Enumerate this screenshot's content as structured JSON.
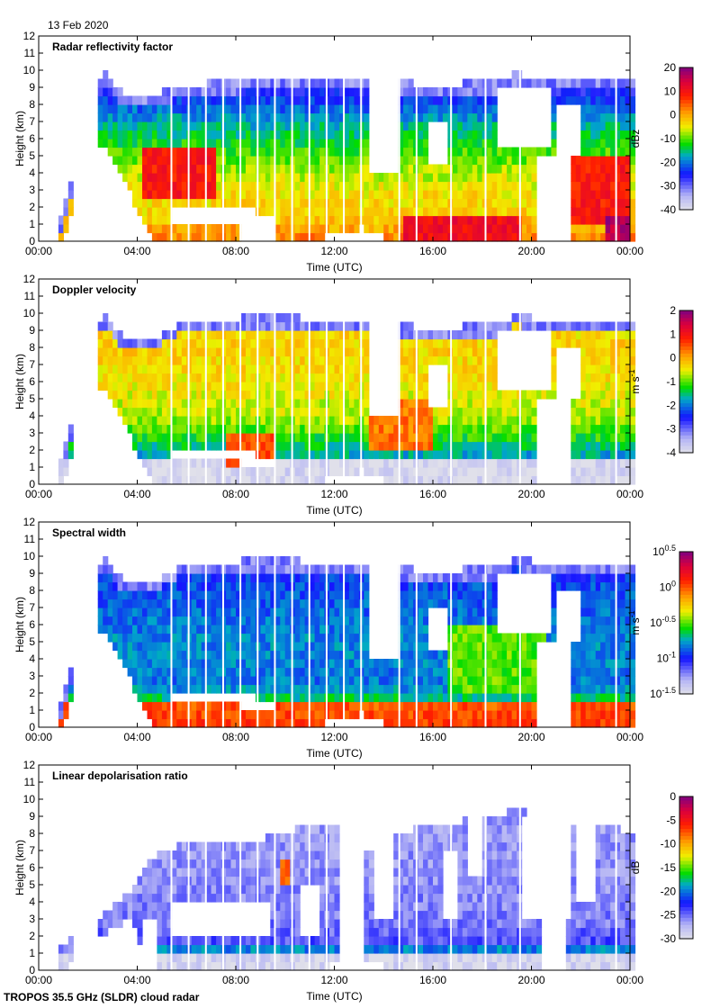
{
  "date": "13 Feb 2020",
  "footer": "TROPOS 35.5 GHz (SLDR) cloud radar",
  "chart_data": [
    {
      "type": "heatmap",
      "title": "Radar reflectivity factor",
      "xlabel": "Time (UTC)",
      "ylabel": "Height (km)",
      "xlim": [
        0,
        24
      ],
      "ylim": [
        0,
        12
      ],
      "xticks": [
        "00:00",
        "04:00",
        "08:00",
        "12:00",
        "16:00",
        "20:00",
        "00:00"
      ],
      "yticks": [
        "0",
        "1",
        "2",
        "3",
        "4",
        "5",
        "6",
        "7",
        "8",
        "9",
        "10",
        "11",
        "12"
      ],
      "colorbar": {
        "label": "dBz",
        "range": [
          -40,
          20
        ],
        "ticks": [
          {
            "b": "20"
          },
          {
            "b": "10"
          },
          {
            "b": "0"
          },
          {
            "b": "-10"
          },
          {
            "b": "-20"
          },
          {
            "b": "-30"
          },
          {
            "b": "-40"
          }
        ]
      },
      "profile": [
        [
          0,
          0.72
        ],
        [
          1.5,
          0.62
        ],
        [
          3,
          0.6
        ],
        [
          5,
          0.5
        ],
        [
          7,
          0.38
        ],
        [
          9,
          0.22
        ],
        [
          10,
          0.12
        ]
      ],
      "hotspots": [
        [
          4.3,
          7.2,
          2.5,
          5.5,
          0.82
        ],
        [
          21.6,
          24,
          1,
          5,
          0.82
        ],
        [
          14.8,
          19.5,
          0,
          1.5,
          0.85
        ],
        [
          23,
          24,
          0,
          1.5,
          0.95
        ]
      ],
      "envelope": [
        [
          0.9,
          1.3,
          0
        ],
        [
          2.6,
          10,
          6
        ],
        [
          3.5,
          8.5,
          3.5
        ],
        [
          4.6,
          8.5,
          0
        ],
        [
          6,
          9.2,
          0
        ],
        [
          9,
          9.4,
          0
        ],
        [
          12,
          9.6,
          0.3
        ],
        [
          13.2,
          9.4,
          0.8
        ],
        [
          14.5,
          9.3,
          0
        ],
        [
          16,
          9.2,
          0
        ],
        [
          18.5,
          9.3,
          0
        ],
        [
          19.3,
          9.8,
          0
        ],
        [
          21,
          9.5,
          0
        ],
        [
          23,
          9.6,
          0
        ],
        [
          24,
          9.5,
          0
        ]
      ],
      "holes": [
        [
          5.4,
          8.8,
          0.8,
          2.1
        ],
        [
          8.3,
          9.6,
          0,
          1.5
        ],
        [
          13.3,
          14.6,
          4,
          9.3
        ],
        [
          15.8,
          16.6,
          4.5,
          7
        ],
        [
          18.5,
          20.7,
          5.5,
          9
        ],
        [
          21,
          22,
          5,
          8
        ],
        [
          20.2,
          21.5,
          0,
          5
        ]
      ]
    },
    {
      "type": "heatmap",
      "title": "Doppler velocity",
      "xlabel": "Time (UTC)",
      "ylabel": "Height (km)",
      "xlim": [
        0,
        24
      ],
      "ylim": [
        0,
        12
      ],
      "xticks": [
        "00:00",
        "04:00",
        "08:00",
        "12:00",
        "16:00",
        "20:00",
        "00:00"
      ],
      "yticks": [
        "0",
        "1",
        "2",
        "3",
        "4",
        "5",
        "6",
        "7",
        "8",
        "9",
        "10",
        "11",
        "12"
      ],
      "colorbar": {
        "label": "m s",
        "label_exp": "-1",
        "range": [
          -4,
          2
        ],
        "ticks": [
          {
            "b": "2"
          },
          {
            "b": "1"
          },
          {
            "b": "0"
          },
          {
            "b": "-1"
          },
          {
            "b": "-2"
          },
          {
            "b": "-3"
          },
          {
            "b": "-4"
          }
        ]
      },
      "profile": [
        [
          0,
          0.02
        ],
        [
          1.3,
          0.02
        ],
        [
          1.4,
          0.35
        ],
        [
          2.5,
          0.45
        ],
        [
          4,
          0.55
        ],
        [
          6,
          0.6
        ],
        [
          8,
          0.62
        ],
        [
          10,
          0.6
        ]
      ],
      "hotspots": [
        [
          7.6,
          9.6,
          1,
          3,
          0.75
        ],
        [
          13.4,
          16,
          2,
          5,
          0.72
        ]
      ],
      "envelope": [
        [
          0.9,
          1.3,
          0
        ],
        [
          2.6,
          10,
          6
        ],
        [
          3.5,
          8.5,
          3.5
        ],
        [
          4.6,
          8.5,
          0
        ],
        [
          6,
          9.6,
          0
        ],
        [
          9,
          9.8,
          0
        ],
        [
          12,
          9.7,
          0.3
        ],
        [
          13.2,
          9.7,
          0.8
        ],
        [
          14.5,
          9.3,
          0
        ],
        [
          16,
          9.2,
          0
        ],
        [
          18.5,
          9.3,
          0
        ],
        [
          19.3,
          9.9,
          0
        ],
        [
          21,
          9.5,
          0
        ],
        [
          23,
          9.6,
          0
        ],
        [
          24,
          9.5,
          0
        ]
      ],
      "holes": [
        [
          5.4,
          8.8,
          1.3,
          2.1
        ],
        [
          8.3,
          9.6,
          1,
          1.5
        ],
        [
          13.3,
          14.6,
          4,
          9.3
        ],
        [
          15.8,
          16.6,
          4.5,
          7
        ],
        [
          18.5,
          20.7,
          5.5,
          9
        ],
        [
          21,
          22,
          5,
          8
        ],
        [
          20.2,
          21.5,
          0,
          5
        ]
      ]
    },
    {
      "type": "heatmap",
      "title": "Spectral width",
      "xlabel": "Time (UTC)",
      "ylabel": "Height (km)",
      "xlim": [
        0,
        24
      ],
      "ylim": [
        0,
        12
      ],
      "xticks": [
        "00:00",
        "04:00",
        "08:00",
        "12:00",
        "16:00",
        "20:00",
        "00:00"
      ],
      "yticks": [
        "0",
        "1",
        "2",
        "3",
        "4",
        "5",
        "6",
        "7",
        "8",
        "9",
        "10",
        "11",
        "12"
      ],
      "colorbar": {
        "label": "m s",
        "label_exp": "-1",
        "range": [
          -1.5,
          0.5
        ],
        "scale": "log10",
        "ticks": [
          {
            "b": "10",
            "e": "0.5"
          },
          {
            "b": "10",
            "e": "0"
          },
          {
            "b": "10",
            "e": "-0.5"
          },
          {
            "b": "10",
            "e": "-1"
          },
          {
            "b": "10",
            "e": "-1.5"
          }
        ]
      },
      "profile": [
        [
          0,
          0.78
        ],
        [
          1.3,
          0.75
        ],
        [
          1.5,
          0.45
        ],
        [
          2.5,
          0.33
        ],
        [
          5,
          0.35
        ],
        [
          8,
          0.3
        ],
        [
          10,
          0.25
        ]
      ],
      "hotspots": [
        [
          16.5,
          20.5,
          2,
          6,
          0.5
        ]
      ],
      "envelope": [
        [
          0.9,
          1.3,
          0
        ],
        [
          2.6,
          10,
          6
        ],
        [
          3.5,
          8.5,
          3.5
        ],
        [
          4.6,
          8.5,
          0
        ],
        [
          6,
          9.6,
          0
        ],
        [
          9,
          9.8,
          0
        ],
        [
          12,
          9.7,
          0.3
        ],
        [
          13.2,
          9.7,
          0.8
        ],
        [
          14.5,
          9.3,
          0
        ],
        [
          16,
          9.2,
          0
        ],
        [
          18.5,
          9.3,
          0
        ],
        [
          19.3,
          9.9,
          0
        ],
        [
          21,
          9.5,
          0
        ],
        [
          23,
          9.6,
          0
        ],
        [
          24,
          9.5,
          0
        ]
      ],
      "holes": [
        [
          5.4,
          8.8,
          1.3,
          2.1
        ],
        [
          8.3,
          9.6,
          1,
          1.5
        ],
        [
          13.3,
          14.6,
          4,
          9.3
        ],
        [
          15.8,
          16.6,
          4.5,
          7
        ],
        [
          18.5,
          20.7,
          5.5,
          9
        ],
        [
          21,
          22,
          5,
          8
        ],
        [
          20.2,
          21.5,
          0,
          5
        ]
      ]
    },
    {
      "type": "heatmap",
      "title": "Linear depolarisation ratio",
      "xlabel": "Time (UTC)",
      "ylabel": "Height (km)",
      "xlim": [
        0,
        24
      ],
      "ylim": [
        0,
        12
      ],
      "xticks": [
        "00:00",
        "04:00",
        "08:00",
        "12:00",
        "16:00",
        "20:00",
        "00:00"
      ],
      "yticks": [
        "0",
        "1",
        "2",
        "3",
        "4",
        "5",
        "6",
        "7",
        "8",
        "9",
        "10",
        "11",
        "12"
      ],
      "colorbar": {
        "label": "dB",
        "range": [
          -30,
          0
        ],
        "ticks": [
          {
            "b": "0"
          },
          {
            "b": "-5"
          },
          {
            "b": "-10"
          },
          {
            "b": "-15"
          },
          {
            "b": "-20"
          },
          {
            "b": "-25"
          },
          {
            "b": "-30"
          }
        ]
      },
      "profile": [
        [
          0,
          0.03
        ],
        [
          1.1,
          0.03
        ],
        [
          1.3,
          0.45
        ],
        [
          1.5,
          0.2
        ],
        [
          3,
          0.15
        ],
        [
          6,
          0.13
        ],
        [
          8,
          0.12
        ]
      ],
      "hotspots": [
        [
          9.7,
          10.2,
          5,
          6.5,
          0.75
        ]
      ],
      "envelope": [
        [
          0.9,
          1.3,
          0
        ],
        [
          3.7,
          4.6,
          3.2
        ],
        [
          4.4,
          6.5,
          0
        ],
        [
          6,
          7.5,
          0
        ],
        [
          8,
          7.3,
          0
        ],
        [
          10.5,
          8.3,
          0
        ],
        [
          12,
          8.5,
          0.3
        ],
        [
          13.2,
          7,
          0.8
        ],
        [
          14.5,
          8,
          0
        ],
        [
          16,
          8.5,
          0
        ],
        [
          18.5,
          9,
          0
        ],
        [
          19.3,
          9.5,
          0
        ],
        [
          21,
          8.5,
          0
        ],
        [
          23,
          8.6,
          0
        ],
        [
          24,
          8,
          0
        ]
      ],
      "holes": [
        [
          4.2,
          4.9,
          0,
          3
        ],
        [
          5.4,
          9.3,
          1.8,
          4
        ],
        [
          10.5,
          11.3,
          1.8,
          5
        ],
        [
          12.2,
          13.2,
          0,
          8
        ],
        [
          13.5,
          14.4,
          3,
          9
        ],
        [
          16.3,
          17,
          3,
          7
        ],
        [
          17.4,
          18,
          5.5,
          9
        ],
        [
          19.5,
          21.5,
          3,
          9
        ],
        [
          20.3,
          21.4,
          0,
          3
        ],
        [
          21.7,
          22.6,
          4,
          9
        ]
      ]
    }
  ]
}
